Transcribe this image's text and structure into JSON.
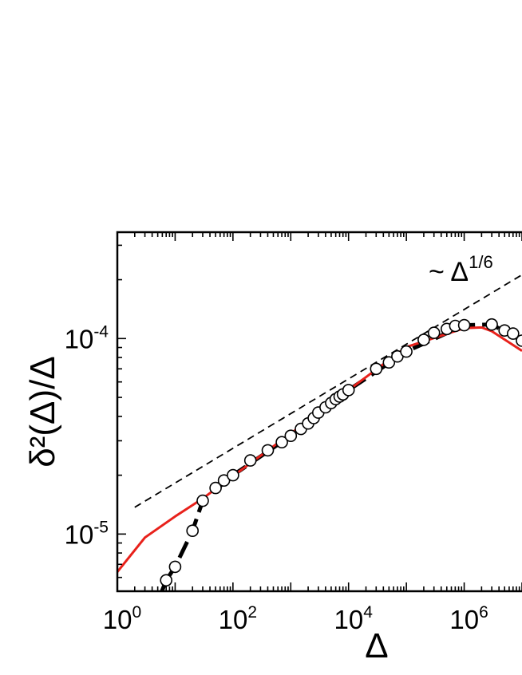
{
  "chart_data": {
    "type": "scatter",
    "scale": {
      "x": "log",
      "y": "log"
    },
    "xlim": [
      1,
      10000000
    ],
    "ylim": [
      5.1e-06,
      0.00035
    ],
    "xlabel": "Δ",
    "ylabel": "δ²(Δ)/Δ",
    "grid": false,
    "legend": "none",
    "x_ticks": [
      {
        "value": 1,
        "base": "10",
        "exp": "0"
      },
      {
        "value": 100,
        "base": "10",
        "exp": "2"
      },
      {
        "value": 10000,
        "base": "10",
        "exp": "4"
      },
      {
        "value": 1000000,
        "base": "10",
        "exp": "6"
      }
    ],
    "y_ticks": [
      {
        "value": 1e-05,
        "base": "10",
        "exp": "-5"
      },
      {
        "value": 0.0001,
        "base": "10",
        "exp": "-4"
      }
    ],
    "annotation": {
      "text": "~ Δ",
      "exp": "1/6"
    },
    "series": [
      {
        "kind": "markers",
        "marker": "open-circle",
        "color": "#000000",
        "points": [
          {
            "x": 5,
            "y": 4.5e-06
          },
          {
            "x": 7,
            "y": 5.8e-06
          },
          {
            "x": 10,
            "y": 6.8e-06
          },
          {
            "x": 20,
            "y": 1.04e-05
          },
          {
            "x": 30,
            "y": 1.48e-05
          },
          {
            "x": 50,
            "y": 1.72e-05
          },
          {
            "x": 70,
            "y": 1.88e-05
          },
          {
            "x": 100,
            "y": 2e-05
          },
          {
            "x": 200,
            "y": 2.38e-05
          },
          {
            "x": 400,
            "y": 2.68e-05
          },
          {
            "x": 700,
            "y": 2.95e-05
          },
          {
            "x": 1000,
            "y": 3.18e-05
          },
          {
            "x": 1500,
            "y": 3.45e-05
          },
          {
            "x": 2000,
            "y": 3.68e-05
          },
          {
            "x": 2500,
            "y": 3.92e-05
          },
          {
            "x": 3000,
            "y": 4.18e-05
          },
          {
            "x": 4000,
            "y": 4.45e-05
          },
          {
            "x": 5000,
            "y": 4.68e-05
          },
          {
            "x": 6000,
            "y": 4.9e-05
          },
          {
            "x": 7000,
            "y": 5.05e-05
          },
          {
            "x": 8000,
            "y": 5.18e-05
          },
          {
            "x": 10000,
            "y": 5.45e-05
          },
          {
            "x": 30000,
            "y": 7e-05
          },
          {
            "x": 50000,
            "y": 7.55e-05
          },
          {
            "x": 70000,
            "y": 8.1e-05
          },
          {
            "x": 100000,
            "y": 8.58e-05
          },
          {
            "x": 200000,
            "y": 9.85e-05
          },
          {
            "x": 300000,
            "y": 0.000107
          },
          {
            "x": 500000,
            "y": 0.000112
          },
          {
            "x": 700000,
            "y": 0.000116
          },
          {
            "x": 1000000,
            "y": 0.000117
          },
          {
            "x": 3000000,
            "y": 0.000118
          },
          {
            "x": 5000000,
            "y": 0.00011
          },
          {
            "x": 7000000,
            "y": 0.000106
          },
          {
            "x": 10000000,
            "y": 9.75e-05
          }
        ]
      },
      {
        "kind": "line",
        "style": "thick-dashed",
        "color": "#000000",
        "points": [
          {
            "x": 5,
            "y": 4.5e-06
          },
          {
            "x": 7,
            "y": 5.8e-06
          },
          {
            "x": 10,
            "y": 6.8e-06
          },
          {
            "x": 20,
            "y": 1.04e-05
          },
          {
            "x": 30,
            "y": 1.48e-05
          },
          {
            "x": 100,
            "y": 2e-05
          },
          {
            "x": 1000,
            "y": 3.18e-05
          },
          {
            "x": 10000,
            "y": 5.45e-05
          },
          {
            "x": 100000,
            "y": 8.58e-05
          },
          {
            "x": 1000000,
            "y": 0.000117
          },
          {
            "x": 3000000,
            "y": 0.000118
          },
          {
            "x": 10000000,
            "y": 9.75e-05
          }
        ]
      },
      {
        "kind": "line",
        "style": "solid",
        "color": "#e8211b",
        "points": [
          {
            "x": 1,
            "y": 6.4e-06
          },
          {
            "x": 3,
            "y": 9.6e-06
          },
          {
            "x": 10,
            "y": 1.23e-05
          },
          {
            "x": 30,
            "y": 1.52e-05
          },
          {
            "x": 100,
            "y": 1.98e-05
          },
          {
            "x": 1000,
            "y": 3.27e-05
          },
          {
            "x": 10000,
            "y": 5.45e-05
          },
          {
            "x": 100000,
            "y": 9.05e-05
          },
          {
            "x": 1000000,
            "y": 0.000113
          },
          {
            "x": 2000000,
            "y": 0.000114
          },
          {
            "x": 3000000,
            "y": 0.000109
          },
          {
            "x": 10000000,
            "y": 8.65e-05
          }
        ]
      },
      {
        "kind": "line",
        "style": "thin-dashed",
        "color": "#000000",
        "points": [
          {
            "x": 2,
            "y": 1.37e-05
          },
          {
            "x": 10000000,
            "y": 0.000212
          }
        ]
      }
    ]
  }
}
